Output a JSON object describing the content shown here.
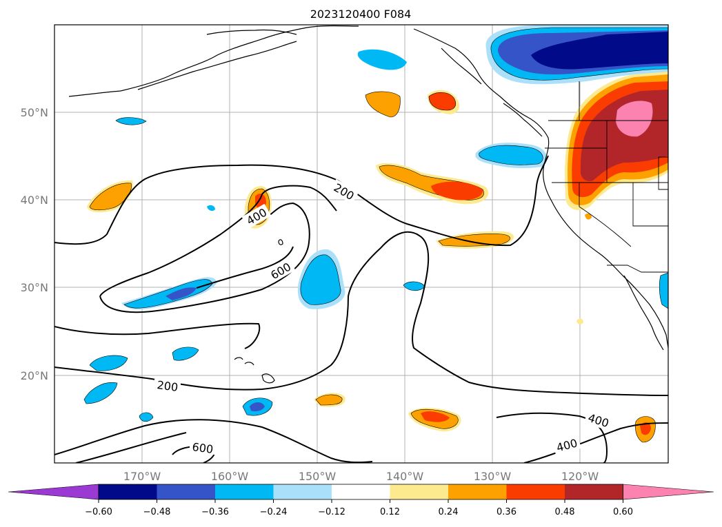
{
  "title": "2023120400 F084",
  "map": {
    "region": "North Pacific / western North America",
    "lon_labels": [
      "170°W",
      "160°W",
      "150°W",
      "140°W",
      "130°W",
      "120°W"
    ],
    "lat_labels": [
      "50°N",
      "40°N",
      "30°N",
      "20°N"
    ],
    "contour_labels": [
      "200",
      "400",
      "600",
      "200",
      "400",
      "600",
      "400",
      "400"
    ],
    "grid": true
  },
  "colorbar": {
    "ticks": [
      "−0.60",
      "−0.48",
      "−0.36",
      "−0.24",
      "−0.12",
      "0.12",
      "0.24",
      "0.36",
      "0.48",
      "0.60"
    ],
    "colors": [
      "#9a3ad2",
      "#010b8a",
      "#3554c8",
      "#00b9f4",
      "#abe0fa",
      "#ffffff",
      "#fde98e",
      "#fda100",
      "#fb3c00",
      "#b2262a",
      "#fc82af"
    ],
    "extend": "both"
  },
  "chart_data": {
    "type": "map",
    "title": "2023120400 F084",
    "fill_levels": [
      -0.6,
      -0.48,
      -0.36,
      -0.24,
      -0.12,
      0.12,
      0.24,
      0.36,
      0.48,
      0.6
    ],
    "contour_levels": [
      200,
      400,
      600
    ],
    "lon_ticks": [
      -170,
      -160,
      -150,
      -140,
      -130,
      -120
    ],
    "lat_ticks": [
      20,
      30,
      40,
      50
    ]
  }
}
